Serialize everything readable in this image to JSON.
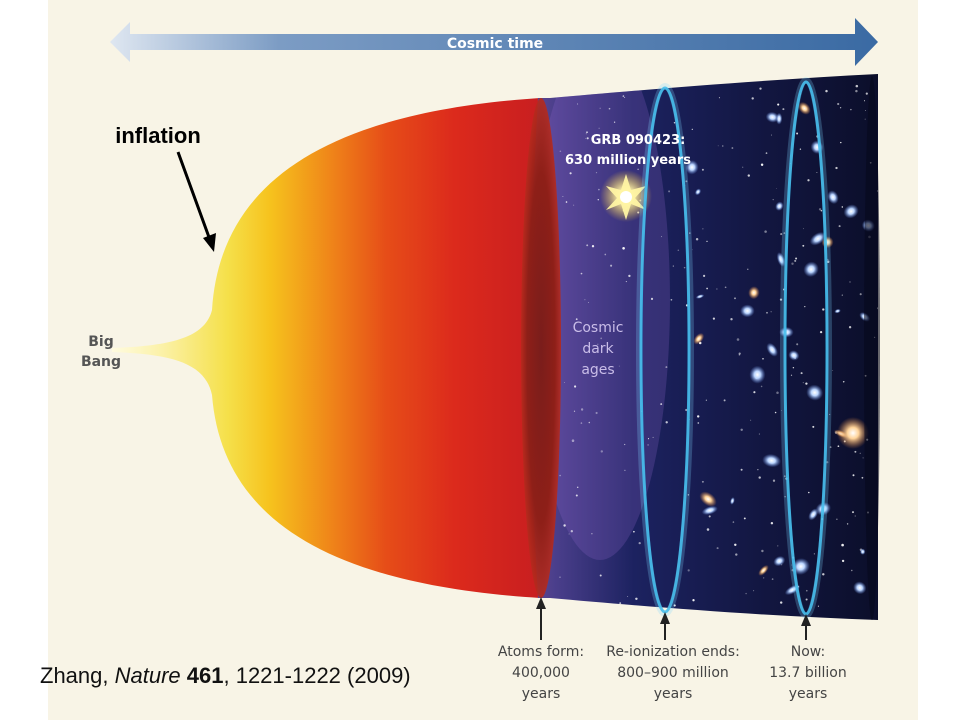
{
  "header": {
    "arrow_label": "Cosmic time"
  },
  "annotations": {
    "inflation": "inflation",
    "big_bang_1": "Big",
    "big_bang_2": "Bang",
    "grb_1": "GRB 090423:",
    "grb_2": "630 million years",
    "dark_ages_1": "Cosmic",
    "dark_ages_2": "dark",
    "dark_ages_3": "ages"
  },
  "milestones": [
    {
      "line1": "Atoms form:",
      "line2": "400,000",
      "line3": "years"
    },
    {
      "line1": "Re-ionization ends:",
      "line2": "800–900 million",
      "line3": "years"
    },
    {
      "line1": "Now:",
      "line2": "13.7 billion",
      "line3": "years"
    }
  ],
  "citation": {
    "author": "Zhang, ",
    "journal": "Nature",
    "volume": " 461",
    "pages": ", 1221-1222 (2009)"
  },
  "colors": {
    "background": "#f8f4e6",
    "arrow": "#3f6fa5",
    "ring": "#35b6e6",
    "space": "#0e1230"
  }
}
